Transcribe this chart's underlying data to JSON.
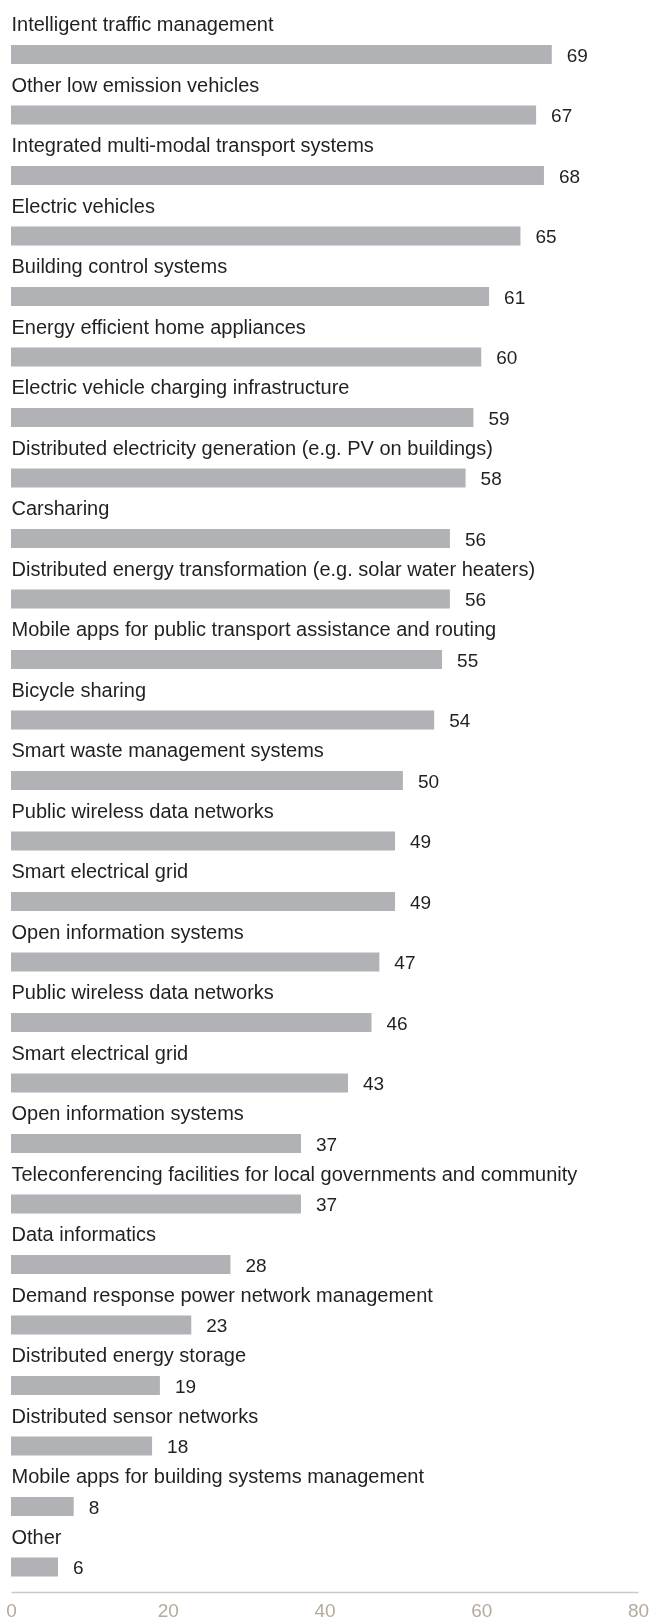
{
  "chart_data": {
    "type": "bar",
    "orientation": "horizontal",
    "categories": [
      "Intelligent traffic management",
      "Other low emission vehicles",
      "Integrated multi-modal transport systems",
      "Electric vehicles",
      "Building control systems",
      "Energy efficient home appliances",
      "Electric vehicle charging infrastructure",
      "Distributed electricity generation (e.g. PV on buildings)",
      "Carsharing",
      "Distributed energy transformation (e.g. solar water heaters)",
      "Mobile apps for public transport assistance and routing",
      "Bicycle sharing",
      "Smart waste management systems",
      "Public wireless data networks",
      "Smart electrical grid",
      "Open information systems",
      "Public wireless data networks",
      "Smart electrical grid",
      "Open information systems",
      "Teleconferencing facilities for local governments and community",
      "Data informatics",
      "Demand response power network management",
      "Distributed energy storage",
      "Distributed sensor networks",
      "Mobile apps for building systems management",
      "Other"
    ],
    "values": [
      69,
      67,
      68,
      65,
      61,
      60,
      59,
      58,
      56,
      56,
      55,
      54,
      50,
      49,
      49,
      47,
      46,
      43,
      37,
      37,
      28,
      23,
      19,
      18,
      8,
      6
    ],
    "color": "#b1b2b6",
    "xlim": [
      0,
      80
    ],
    "xticks": [
      0,
      20,
      40,
      60,
      80
    ],
    "data_labels": true
  }
}
